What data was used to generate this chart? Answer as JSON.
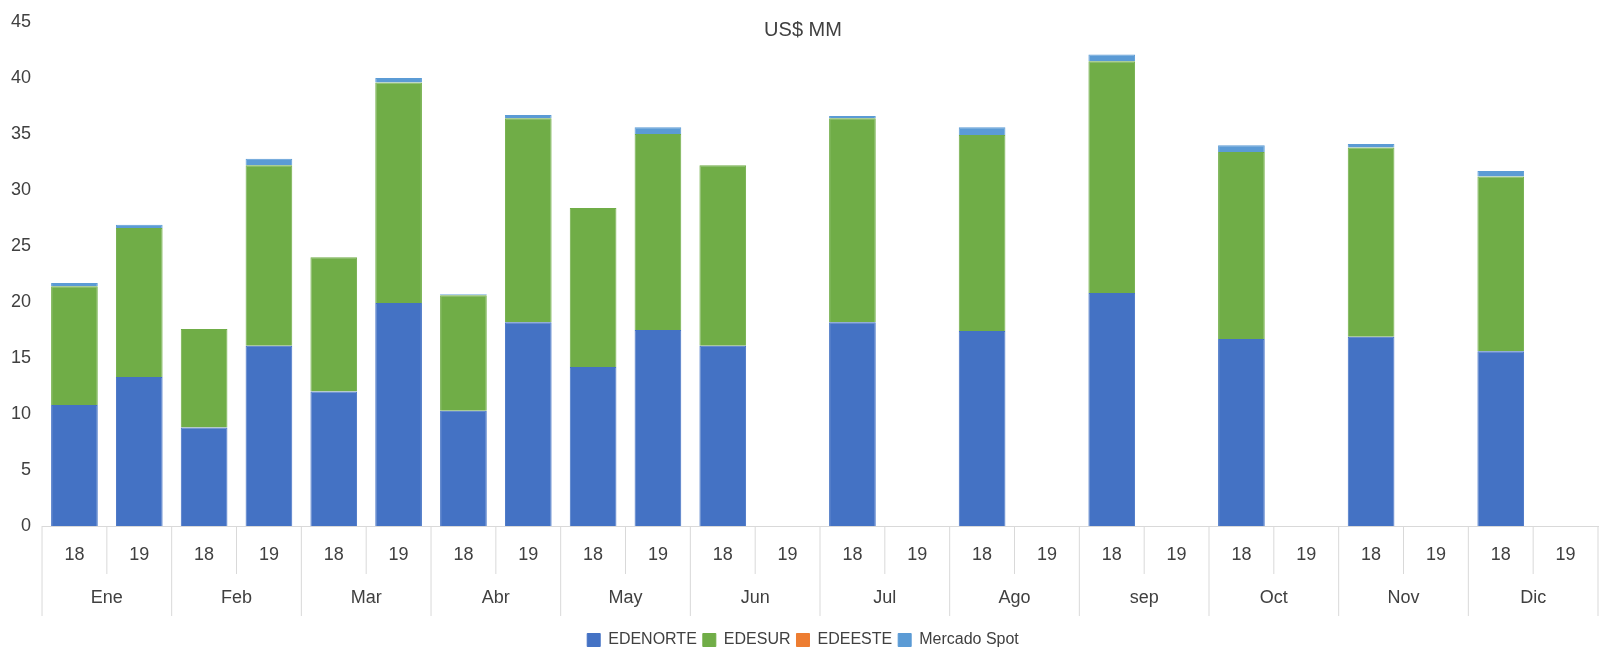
{
  "chart_data": {
    "type": "bar",
    "title": "US$ MM",
    "stacked": true,
    "legend": "bottom",
    "grid": false,
    "categories": [
      "18",
      "19",
      "18",
      "19",
      "18",
      "19",
      "18",
      "19",
      "18",
      "19",
      "18",
      "19",
      "18",
      "19",
      "18",
      "19",
      "18",
      "19",
      "18",
      "19",
      "18",
      "19",
      "18",
      "19"
    ],
    "annotations": [
      "Ene",
      "Feb",
      "Mar",
      "Abr",
      "May",
      "Jun",
      "Jul",
      "Ago",
      "sep",
      "Oct",
      "Nov",
      "Dic"
    ],
    "ylim": [
      0,
      45
    ],
    "yticks": [
      0,
      5,
      10,
      15,
      20,
      25,
      30,
      35,
      40,
      45
    ],
    "series": [
      {
        "name": "EDENORTE",
        "color": "#4472c4",
        "values": [
          10.8,
          13.3,
          8.8,
          16.1,
          12.0,
          19.9,
          10.3,
          18.2,
          14.2,
          17.5,
          16.1,
          null,
          18.2,
          null,
          17.4,
          null,
          20.8,
          null,
          16.7,
          null,
          16.9,
          null,
          15.6,
          null
        ]
      },
      {
        "name": "EDESUR",
        "color": "#70ad47",
        "values": [
          10.6,
          13.3,
          8.8,
          16.1,
          12.0,
          19.7,
          10.3,
          18.2,
          14.2,
          17.5,
          16.1,
          null,
          18.2,
          null,
          17.5,
          null,
          20.7,
          null,
          16.7,
          null,
          16.9,
          null,
          15.6,
          null
        ]
      },
      {
        "name": "EDEESTE",
        "color": "#ed7d31",
        "values": [
          null,
          null,
          null,
          null,
          null,
          null,
          null,
          null,
          null,
          null,
          null,
          null,
          null,
          null,
          null,
          null,
          null,
          null,
          null,
          null,
          null,
          null,
          null,
          null
        ]
      },
      {
        "name": "Mercado Spot",
        "color": "#5b9bd5",
        "values": [
          0.3,
          0.3,
          null,
          0.6,
          null,
          0.4,
          0.1,
          0.3,
          null,
          0.6,
          null,
          null,
          0.2,
          null,
          0.7,
          null,
          0.6,
          null,
          0.6,
          null,
          0.3,
          null,
          0.5,
          null
        ]
      }
    ]
  }
}
